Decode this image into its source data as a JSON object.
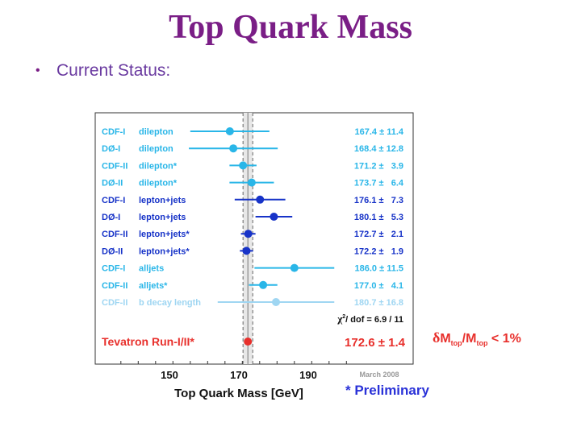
{
  "title": "Top Quark Mass",
  "bullet": "Current Status:",
  "chart_data": {
    "type": "scatter",
    "xlabel": "Top Quark Mass [GeV]",
    "xlim": [
      136,
      201
    ],
    "xticks": [
      150,
      170,
      190
    ],
    "grid": false,
    "measurements": [
      {
        "experiment": "CDF-I",
        "channel": "dilepton",
        "value": 167.4,
        "error": 11.4,
        "value_text": "167.4 ± 11.4",
        "color": "#29b6e8"
      },
      {
        "experiment": "DØ-I",
        "channel": "dilepton",
        "value": 168.4,
        "error": 12.8,
        "value_text": "168.4 ± 12.8",
        "color": "#29b6e8"
      },
      {
        "experiment": "CDF-II",
        "channel": "dilepton*",
        "value": 171.2,
        "error": 3.9,
        "value_text": "171.2 ±   3.9",
        "color": "#29b6e8"
      },
      {
        "experiment": "DØ-II",
        "channel": "dilepton*",
        "value": 173.7,
        "error": 6.4,
        "value_text": "173.7 ±   6.4",
        "color": "#29b6e8"
      },
      {
        "experiment": "CDF-I",
        "channel": "lepton+jets",
        "value": 176.1,
        "error": 7.3,
        "value_text": "176.1 ±   7.3",
        "color": "#1733c8"
      },
      {
        "experiment": "DØ-I",
        "channel": "lepton+jets",
        "value": 180.1,
        "error": 5.3,
        "value_text": "180.1 ±   5.3",
        "color": "#1733c8"
      },
      {
        "experiment": "CDF-II",
        "channel": "lepton+jets*",
        "value": 172.7,
        "error": 2.1,
        "value_text": "172.7 ±   2.1",
        "color": "#1733c8"
      },
      {
        "experiment": "DØ-II",
        "channel": "lepton+jets*",
        "value": 172.2,
        "error": 1.9,
        "value_text": "172.2 ±   1.9",
        "color": "#1733c8"
      },
      {
        "experiment": "CDF-I",
        "channel": "alljets",
        "value": 186.0,
        "error": 11.5,
        "value_text": "186.0 ± 11.5",
        "color": "#29b6e8"
      },
      {
        "experiment": "CDF-II",
        "channel": "alljets*",
        "value": 177.0,
        "error": 4.1,
        "value_text": "177.0 ±   4.1",
        "color": "#29b6e8"
      },
      {
        "experiment": "CDF-II",
        "channel": "b decay length",
        "value": 180.7,
        "error": 16.8,
        "value_text": "180.7 ± 16.8",
        "color": "#9fd6f2"
      }
    ],
    "combination": {
      "label": "Tevatron Run-I/II*",
      "value": 172.6,
      "error": 1.4,
      "value_text": "172.6 ± 1.4",
      "color": "#e8302c"
    },
    "chi2_text": "/ dof = 6.9 / 11",
    "date_text": "March 2008",
    "preliminary_text": "* Preliminary",
    "precision_text": "< 1%"
  }
}
